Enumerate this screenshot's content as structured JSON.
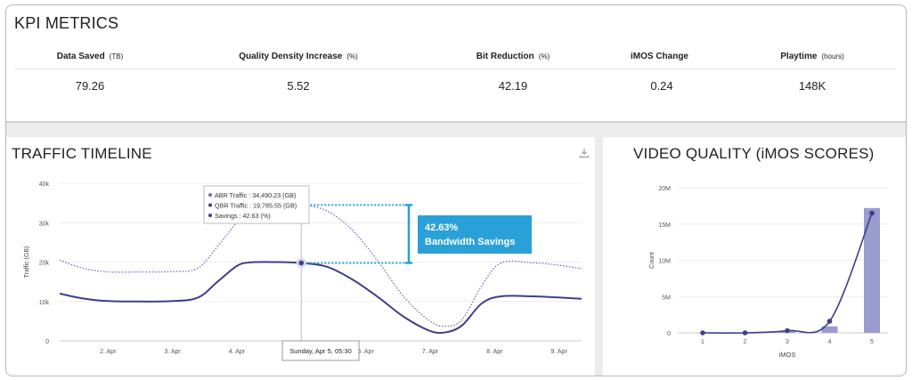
{
  "kpi": {
    "title": "KPI METRICS",
    "metrics": [
      {
        "label": "Data Saved",
        "unit": "(TB)",
        "value": "79.26"
      },
      {
        "label": "Quality Density Increase",
        "unit": "(%)",
        "value": "5.52"
      },
      {
        "label": "Bit Reduction",
        "unit": "(%)",
        "value": "42.19"
      },
      {
        "label": "iMOS Change",
        "unit": "",
        "value": "0.24"
      },
      {
        "label": "Playtime",
        "unit": "(hours)",
        "value": "148K"
      }
    ]
  },
  "traffic": {
    "title": "TRAFFIC TIMELINE",
    "download_icon": "download-icon",
    "tooltip": {
      "lines": [
        "ABR Traffic : 34,490.23 (GB)",
        "QBR Traffic : 19,785.55 (GB)",
        "Savings : 42.63 (%)"
      ]
    },
    "crosshair_label": "Sunday, Apr 5, 05:30",
    "callout": {
      "value": "42.63%",
      "text": "Bandwidth Savings"
    }
  },
  "video_quality": {
    "title": "VIDEO QUALITY (iMOS SCORES)"
  },
  "chart_data": [
    {
      "type": "line",
      "ylabel": "Traffic (GB)",
      "y_ticks": [
        "0",
        "10k",
        "20k",
        "30k",
        "40k"
      ],
      "ylim": [
        0,
        40000
      ],
      "x_ticks": [
        "2. Apr",
        "3. Apr",
        "4. Apr",
        "5. Apr",
        "6. Apr",
        "7. Apr",
        "8. Apr",
        "9. Apr"
      ],
      "xlim": [
        1.25,
        9.35
      ],
      "grid": true,
      "colors": {
        "abr": "#6b6fb3",
        "qbr": "#3f3d8c"
      },
      "series": [
        {
          "key": "abr",
          "style": "dotted",
          "x": [
            1.25,
            1.6,
            2.0,
            2.5,
            3.0,
            3.4,
            3.75,
            4.2,
            4.6,
            5.0,
            5.4,
            5.8,
            6.2,
            6.6,
            7.0,
            7.25,
            7.5,
            7.8,
            8.1,
            8.6,
            9.0,
            9.35
          ],
          "y": [
            20500,
            18500,
            17500,
            17500,
            17600,
            18500,
            25000,
            33500,
            34400,
            34490,
            33000,
            28000,
            20000,
            11000,
            5000,
            3700,
            5500,
            14000,
            19800,
            19800,
            19200,
            18300
          ]
        },
        {
          "key": "qbr",
          "style": "solid",
          "x": [
            1.25,
            1.6,
            2.0,
            2.5,
            3.0,
            3.4,
            3.7,
            4.0,
            4.2,
            4.6,
            5.0,
            5.4,
            5.8,
            6.2,
            6.6,
            7.0,
            7.25,
            7.5,
            7.8,
            8.1,
            8.6,
            9.0,
            9.35
          ],
          "y": [
            12000,
            10800,
            10100,
            10000,
            10100,
            11000,
            15000,
            19000,
            19900,
            20000,
            19785,
            18800,
            15500,
            11000,
            6000,
            2500,
            2200,
            4000,
            9500,
            11300,
            11300,
            11000,
            10700
          ]
        }
      ],
      "markers": [
        {
          "x": 5.0,
          "y": 34490,
          "series": "abr"
        },
        {
          "x": 5.0,
          "y": 19785,
          "series": "qbr"
        }
      ]
    },
    {
      "type": "bar",
      "xlabel": "iMOS",
      "ylabel": "Count",
      "categories": [
        "1",
        "2",
        "3",
        "4",
        "5"
      ],
      "y_ticks": [
        "0",
        "5M",
        "10M",
        "15M",
        "20M"
      ],
      "ylim": [
        0,
        20000000
      ],
      "values": [
        20000,
        30000,
        250000,
        900000,
        17200000
      ],
      "line_values": [
        0,
        0,
        300000,
        1600000,
        16500000
      ],
      "grid": true,
      "colors": {
        "bar": "#9a9cce",
        "line": "#3f3d8c"
      }
    }
  ]
}
